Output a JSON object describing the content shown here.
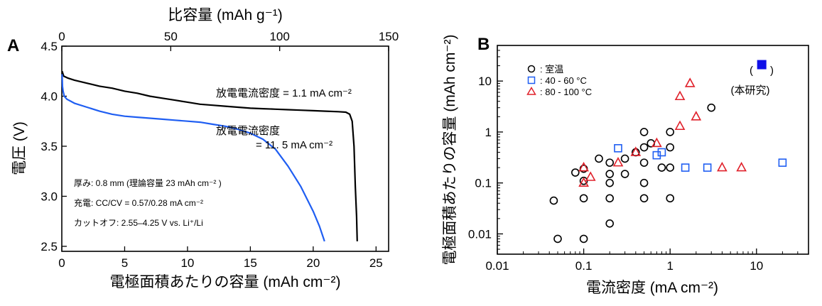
{
  "panel_labels": {
    "a": "A",
    "b": "B"
  },
  "chart_data": [
    {
      "type": "line",
      "panel": "A",
      "xlabel": "電極面積あたりの容量 (mAh cm⁻²)",
      "ylabel": "電圧 (V)",
      "x2label": "比容量 (mAh g⁻¹)",
      "xlim": [
        0,
        26
      ],
      "ylim": [
        2.45,
        4.5
      ],
      "x2lim": [
        0,
        150
      ],
      "xticks": [
        0,
        5,
        10,
        15,
        20,
        25
      ],
      "x2ticks": [
        0,
        50,
        100,
        150
      ],
      "yticks": [
        2.5,
        3.0,
        3.5,
        4.0,
        4.5
      ],
      "grid": false,
      "series": [
        {
          "color": "#000000",
          "label": "放電電流密度 = 1.1 mA cm⁻²",
          "x": [
            0.02,
            0.15,
            0.5,
            1,
            2,
            3,
            4,
            5,
            6,
            7,
            8,
            9,
            10,
            11,
            12,
            13,
            14,
            15,
            16,
            17,
            18,
            19,
            20,
            21,
            22,
            22.6,
            22.9,
            23.1,
            23.25,
            23.35,
            23.45,
            23.5
          ],
          "y": [
            4.25,
            4.2,
            4.18,
            4.16,
            4.13,
            4.1,
            4.08,
            4.05,
            4.03,
            4.0,
            3.98,
            3.96,
            3.94,
            3.92,
            3.91,
            3.9,
            3.89,
            3.88,
            3.875,
            3.87,
            3.865,
            3.86,
            3.855,
            3.85,
            3.845,
            3.84,
            3.82,
            3.75,
            3.5,
            3.1,
            2.8,
            2.55
          ]
        },
        {
          "color": "#1f5ef2",
          "label": "放電電流密度 = 11. 5 mA cm⁻²",
          "x": [
            0.02,
            0.05,
            0.1,
            0.2,
            0.4,
            0.7,
            1,
            2,
            3,
            4,
            5,
            6,
            7,
            8,
            9,
            10,
            11,
            12,
            13,
            14,
            15,
            16,
            17,
            18,
            19,
            20,
            20.5,
            20.9
          ],
          "y": [
            4.22,
            4.1,
            4.05,
            4.0,
            3.97,
            3.95,
            3.93,
            3.89,
            3.85,
            3.82,
            3.8,
            3.79,
            3.78,
            3.77,
            3.76,
            3.75,
            3.74,
            3.72,
            3.7,
            3.67,
            3.63,
            3.57,
            3.47,
            3.3,
            3.1,
            2.85,
            2.7,
            2.55
          ]
        }
      ],
      "annotations": {
        "black_curve": "放電電流密度 = 1.1 mA cm⁻²",
        "blue_curve_line1": "放電電流密度",
        "blue_curve_line2": "= 11. 5 mA cm⁻²",
        "note_thickness": "厚み: 0.8 mm (理論容量 23 mAh cm⁻² )",
        "note_charge": "充電: CC/CV = 0.57/0.28 mA cm⁻²",
        "note_cutoff": "カットオフ: 2.55–4.25 V vs. Li⁺/Li"
      }
    },
    {
      "type": "scatter",
      "panel": "B",
      "xlabel": "電流密度 (mA cm⁻²)",
      "ylabel": "電極面積あたりの容量 (mAh cm⁻²)",
      "xscale": "log",
      "yscale": "log",
      "xlim": [
        0.01,
        40
      ],
      "ylim": [
        0.004,
        50
      ],
      "xticks": [
        0.01,
        0.1,
        1,
        10
      ],
      "xtick_labels": [
        "0.01",
        "0.1",
        "1",
        "10"
      ],
      "yticks": [
        0.01,
        0.1,
        1,
        10
      ],
      "ytick_labels": [
        "0.01",
        "0.1",
        "1",
        "10"
      ],
      "grid": false,
      "legend_position": "top-left",
      "series": [
        {
          "name": ": 室温",
          "marker": "circle",
          "color": "#000000",
          "points": [
            [
              0.045,
              0.045
            ],
            [
              0.05,
              0.008
            ],
            [
              0.08,
              0.16
            ],
            [
              0.1,
              0.05
            ],
            [
              0.1,
              0.008
            ],
            [
              0.1,
              0.11
            ],
            [
              0.1,
              0.19
            ],
            [
              0.15,
              0.3
            ],
            [
              0.2,
              0.25
            ],
            [
              0.2,
              0.15
            ],
            [
              0.2,
              0.1
            ],
            [
              0.2,
              0.05
            ],
            [
              0.2,
              0.016
            ],
            [
              0.3,
              0.3
            ],
            [
              0.3,
              0.15
            ],
            [
              0.4,
              0.4
            ],
            [
              0.5,
              1.0
            ],
            [
              0.5,
              0.5
            ],
            [
              0.5,
              0.25
            ],
            [
              0.5,
              0.1
            ],
            [
              0.5,
              0.05
            ],
            [
              0.6,
              0.6
            ],
            [
              0.8,
              0.2
            ],
            [
              1.0,
              1.0
            ],
            [
              1.0,
              0.5
            ],
            [
              1.0,
              0.2
            ],
            [
              1.0,
              0.05
            ],
            [
              3.0,
              3.0
            ]
          ]
        },
        {
          "name": ": 40 - 60 °C",
          "marker": "square",
          "color": "#1f5ef2",
          "points": [
            [
              0.25,
              0.48
            ],
            [
              0.7,
              0.35
            ],
            [
              0.8,
              0.4
            ],
            [
              1.5,
              0.2
            ],
            [
              2.7,
              0.2
            ],
            [
              20,
              0.25
            ]
          ]
        },
        {
          "name": ": 80 - 100 °C",
          "marker": "triangle",
          "color": "#e0202a",
          "points": [
            [
              0.1,
              0.2
            ],
            [
              0.1,
              0.1
            ],
            [
              0.12,
              0.13
            ],
            [
              0.25,
              0.25
            ],
            [
              0.4,
              0.4
            ],
            [
              0.7,
              0.6
            ],
            [
              1.3,
              1.3
            ],
            [
              1.3,
              5.0
            ],
            [
              1.7,
              9.0
            ],
            [
              2.0,
              2.0
            ],
            [
              4.0,
              0.2
            ],
            [
              6.7,
              0.2
            ]
          ]
        },
        {
          "name": "(本研究)",
          "marker": "filled-square",
          "color": "#1010e8",
          "points": [
            [
              11.5,
              21
            ]
          ]
        }
      ],
      "this_work": {
        "prefix": "(",
        "suffix": ")",
        "label": "(本研究)"
      }
    }
  ]
}
